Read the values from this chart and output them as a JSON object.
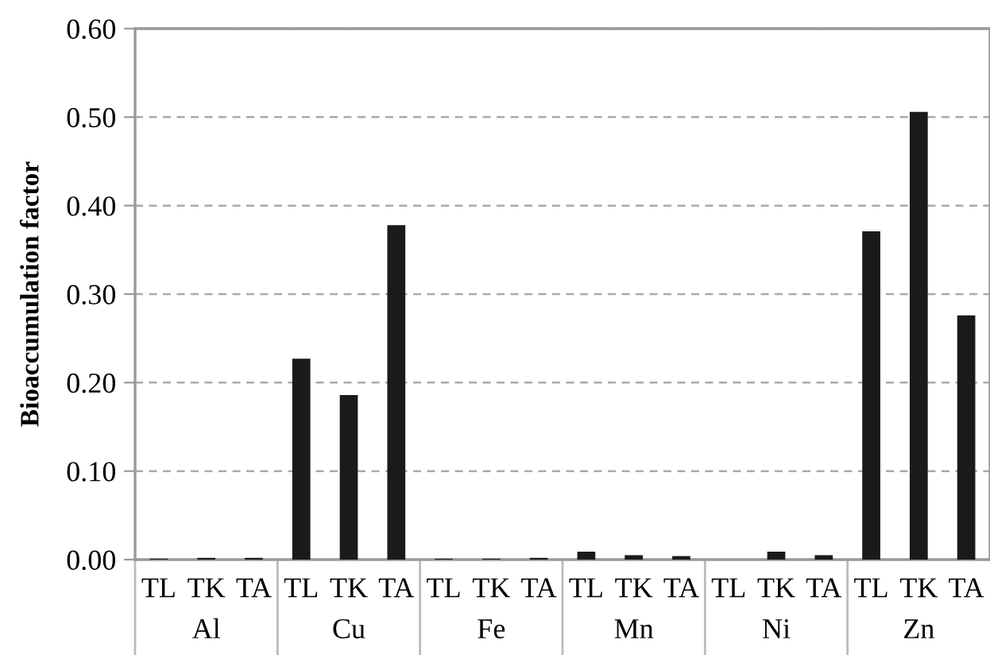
{
  "chart_data": {
    "type": "bar",
    "ylabel": "Bioaccumulation factor",
    "categories": [
      "TL",
      "TK",
      "TA",
      "TL",
      "TK",
      "TA",
      "TL",
      "TK",
      "TA",
      "TL",
      "TK",
      "TA",
      "TL",
      "TK",
      "TA",
      "TL",
      "TK",
      "TA"
    ],
    "values": [
      0.001,
      0.002,
      0.002,
      0.227,
      0.186,
      0.378,
      0.001,
      0.001,
      0.002,
      0.009,
      0.005,
      0.004,
      0,
      0.009,
      0.005,
      0.371,
      0.506,
      0.276
    ],
    "color": "#1a1a1a",
    "ylim": [
      0,
      0.6
    ],
    "yticks": [
      {
        "value": 0,
        "label": "0.00"
      },
      {
        "value": 0.1,
        "label": "0.10"
      },
      {
        "value": 0.2,
        "label": "0.20"
      },
      {
        "value": 0.3,
        "label": "0.30"
      },
      {
        "value": 0.4,
        "label": "0.40"
      },
      {
        "value": 0.5,
        "label": "0.50"
      },
      {
        "value": 0.6,
        "label": "0.60"
      }
    ],
    "grid": "y",
    "annotations": [
      "Al",
      "Cu",
      "Fe",
      "Mn",
      "Ni",
      "Zn"
    ]
  }
}
